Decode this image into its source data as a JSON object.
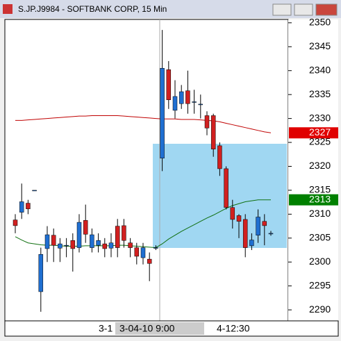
{
  "chart_data": {
    "type": "candlestick",
    "title": "S.JP.J9984 - SOFTBANK CORP, 15 Min",
    "open": [
      2308.8,
      2310.4,
      2312.3,
      2315,
      2293.8,
      2302.8,
      2305.6,
      2302.9,
      2303.5,
      2304.5,
      2303,
      2308.7,
      2303,
      2303.5,
      2303.8,
      2302.9,
      2307.5,
      2307.6,
      2304,
      2303,
      2300.9,
      2300.6,
      2303,
      2321.7,
      2340.2,
      2331.7,
      2333.1,
      2335.8,
      2333.5,
      2333,
      2330.6,
      2330.6,
      2324.3,
      2319.5,
      2311.4,
      2309.7,
      2308.9,
      2303.4,
      2305.6,
      2308.5,
      2306
    ],
    "high": [
      2310,
      2316.4,
      2313,
      2315,
      2303,
      2307.5,
      2307,
      2305,
      2305,
      2306,
      2310,
      2312,
      2307,
      2306,
      2305,
      2306,
      2309,
      2309,
      2305,
      2304,
      2304,
      2302,
      2303.5,
      2348.5,
      2342,
      2338,
      2337,
      2340,
      2336,
      2335,
      2331.5,
      2331,
      2325,
      2320,
      2313,
      2310,
      2310,
      2306,
      2311,
      2310,
      2306.5
    ],
    "low": [
      2306,
      2309,
      2310,
      2315,
      2289.6,
      2300,
      2300,
      2300,
      2301,
      2298,
      2302,
      2304,
      2302,
      2302,
      2301,
      2301,
      2301,
      2303,
      2301,
      2299.5,
      2299.5,
      2296,
      2302.5,
      2319,
      2332,
      2330,
      2332,
      2331,
      2331,
      2330,
      2326.5,
      2322,
      2318,
      2311,
      2307,
      2305,
      2301,
      2302.5,
      2304,
      2303.5,
      2305.5
    ],
    "close": [
      2307.6,
      2312.6,
      2311.1,
      2315,
      2301.6,
      2305.7,
      2303.5,
      2303.8,
      2303.5,
      2302.8,
      2308.3,
      2305.8,
      2305.7,
      2304.5,
      2302.8,
      2304,
      2303,
      2304.5,
      2303,
      2301.2,
      2303,
      2299.7,
      2303,
      2340.5,
      2333.9,
      2334.6,
      2335.6,
      2333.1,
      2333.5,
      2333,
      2328,
      2323.6,
      2319.5,
      2311.4,
      2308.9,
      2308.5,
      2303,
      2304.6,
      2309.4,
      2307.6,
      2306
    ],
    "up_color": "#1f6fd1",
    "down_color": "#d12020",
    "lines": [
      {
        "color": "#c00000",
        "values": [
          2329.6,
          2329.6,
          2329.7,
          2329.8,
          2329.9,
          2330,
          2330.1,
          2330.2,
          2330.3,
          2330.4,
          2330.5,
          2330.5,
          2330.6,
          2330.6,
          2330.6,
          2330.6,
          2330.6,
          2330.5,
          2330.4,
          2330.3,
          2330.2,
          2330.1,
          2330,
          2329.9,
          2329.9,
          2329.9,
          2329.8,
          2329.8,
          2329.8,
          2329.7,
          2329.6,
          2329.5,
          2329.3,
          2329,
          2328.7,
          2328.4,
          2328.1,
          2327.8,
          2327.5,
          2327.2,
          2327
        ]
      },
      {
        "color": "#107010",
        "values": [
          2305.3,
          2304.6,
          2304,
          2303.8,
          2303.6,
          2303.5,
          2303.5,
          2303.4,
          2303.3,
          2303.3,
          2303.3,
          2303.4,
          2303.4,
          2303.4,
          2303.4,
          2303.4,
          2303.5,
          2303.5,
          2303.4,
          2303.3,
          2303.2,
          2303.1,
          2303,
          2303.8,
          2304.8,
          2305.6,
          2306.4,
          2307.1,
          2307.8,
          2308.5,
          2309.2,
          2309.8,
          2310.5,
          2311.2,
          2311.8,
          2312.2,
          2312.6,
          2312.8,
          2313,
          2313,
          2313
        ]
      }
    ],
    "price_markers": [
      {
        "value": 2327,
        "color": "#e00000"
      },
      {
        "value": 2313,
        "color": "#008000"
      }
    ],
    "ylim": [
      2287.7,
      2350.7
    ],
    "yticks": [
      2290,
      2295,
      2300,
      2305,
      2310,
      2315,
      2320,
      2325,
      2330,
      2335,
      2340,
      2345,
      2350
    ],
    "x_labels": [
      "3-1",
      "3-04-10  9:00",
      "4-12:30"
    ]
  }
}
